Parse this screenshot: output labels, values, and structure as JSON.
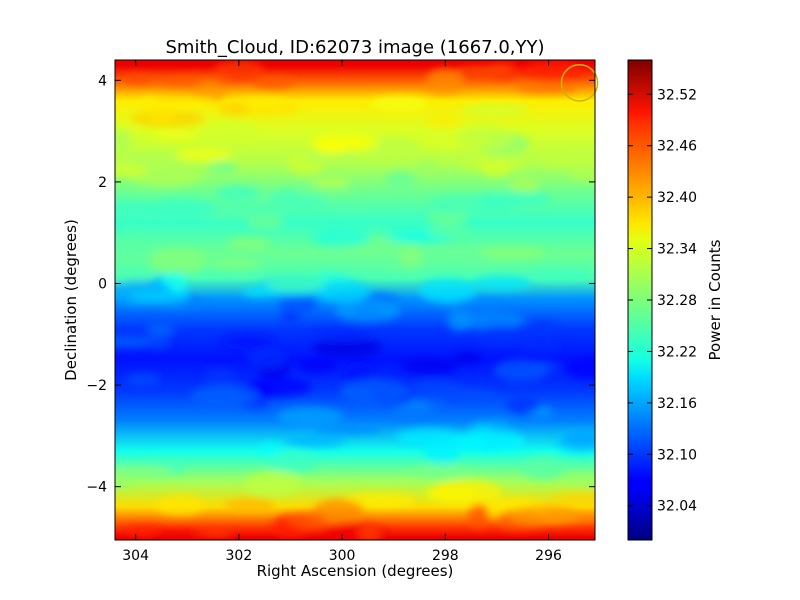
{
  "chart_data": {
    "type": "heatmap",
    "title": "Smith_Cloud, ID:62073 image (1667.0,YY)",
    "xlabel": "Right Ascension (degrees)",
    "ylabel": "Declination (degrees)",
    "colorbar_label": "Power in Counts",
    "xlim": [
      304.4,
      295.1
    ],
    "ylim": [
      -5.05,
      4.4
    ],
    "x_ticks": [
      304,
      302,
      300,
      298,
      296
    ],
    "y_ticks": [
      4,
      2,
      0,
      -2,
      -4
    ],
    "colorbar_range": [
      32.0,
      32.56
    ],
    "colorbar_ticks": [
      "32.52",
      "32.46",
      "32.40",
      "32.34",
      "32.28",
      "32.22",
      "32.16",
      "32.10",
      "32.04"
    ],
    "colormap": "jet",
    "declination_profile": [
      {
        "dec": 4.3,
        "value": 32.5
      },
      {
        "dec": 4.0,
        "value": 32.44
      },
      {
        "dec": 3.6,
        "value": 32.36
      },
      {
        "dec": 3.0,
        "value": 32.33
      },
      {
        "dec": 2.4,
        "value": 32.31
      },
      {
        "dec": 1.8,
        "value": 32.27
      },
      {
        "dec": 1.2,
        "value": 32.24
      },
      {
        "dec": 0.6,
        "value": 32.27
      },
      {
        "dec": 0.1,
        "value": 32.25
      },
      {
        "dec": -0.3,
        "value": 32.15
      },
      {
        "dec": -0.9,
        "value": 32.1
      },
      {
        "dec": -1.5,
        "value": 32.08
      },
      {
        "dec": -2.1,
        "value": 32.1
      },
      {
        "dec": -2.7,
        "value": 32.14
      },
      {
        "dec": -3.3,
        "value": 32.22
      },
      {
        "dec": -3.9,
        "value": 32.3
      },
      {
        "dec": -4.4,
        "value": 32.37
      },
      {
        "dec": -4.8,
        "value": 32.46
      },
      {
        "dec": -5.0,
        "value": 32.5
      }
    ],
    "beam_marker": {
      "ra": 295.4,
      "dec": 3.95,
      "radius_deg": 0.35,
      "color": "#c8b400"
    }
  }
}
